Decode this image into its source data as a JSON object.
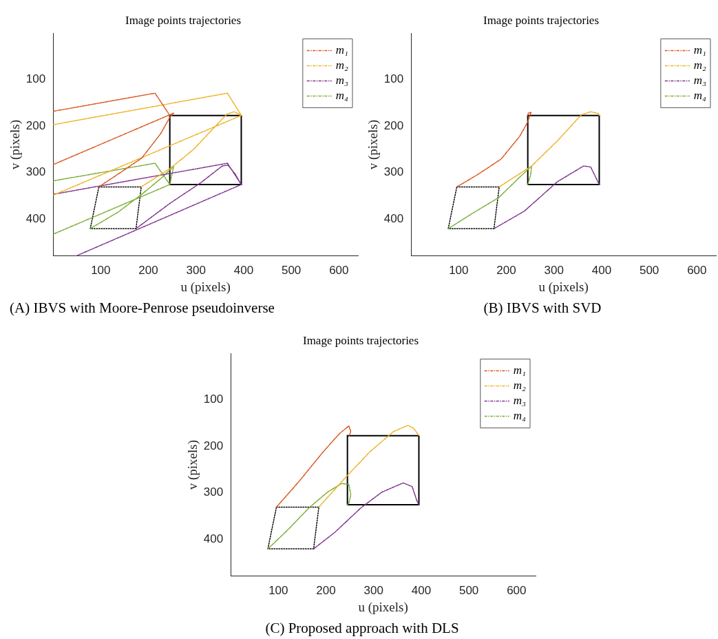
{
  "chart_data": [
    {
      "type": "line",
      "title": "Image points trajectories",
      "xlabel": "u (pixels)",
      "ylabel": "v (pixels)",
      "annotations": [
        "(A) IBVS with Moore-Penrose pseudoinverse"
      ],
      "xlim": [
        0,
        640
      ],
      "ylim": [
        480,
        0
      ],
      "xticks": [
        100,
        200,
        300,
        400,
        500,
        600
      ],
      "yticks": [
        100,
        200,
        300,
        400
      ],
      "grid": false,
      "legend": "top right",
      "marker": "none",
      "series": [
        {
          "name": "m₁",
          "color": "#d95319",
          "line_style": "dashed",
          "x": [
            96,
            137,
            186,
            226,
            245,
            253,
            0,
            null,
            0,
            214,
            245
          ],
          "values": [
            331,
            303,
            269,
            216,
            181,
            172,
            283,
            null,
            168,
            129,
            177
          ]
        },
        {
          "name": "m₂",
          "color": "#edb120",
          "line_style": "dashed",
          "x": [
            185,
            246,
            295,
            340,
            365,
            380,
            395,
            0,
            null,
            0,
            366,
            395
          ],
          "values": [
            331,
            291,
            250,
            201,
            174,
            169,
            177,
            349,
            null,
            197,
            129,
            177
          ]
        },
        {
          "name": "m₃",
          "color": "#7e2f8e",
          "line_style": "dashed",
          "x": [
            174,
            246,
            310,
            355,
            367,
            382,
            395,
            48,
            null,
            0,
            366,
            395
          ],
          "values": [
            421,
            366,
            322,
            286,
            284,
            303,
            326,
            480,
            null,
            347,
            280,
            326
          ]
        },
        {
          "name": "m₄",
          "color": "#77ac30",
          "line_style": "dashed",
          "x": [
            78,
            137,
            186,
            226,
            253,
            245,
            0,
            null,
            0,
            214,
            245
          ],
          "values": [
            421,
            385,
            347,
            313,
            287,
            326,
            433,
            null,
            318,
            280,
            326
          ]
        },
        {
          "color": "#000000",
          "line_style": "solid",
          "x": [
            245,
            395,
            395
          ],
          "values": [
            177,
            177,
            326
          ]
        },
        {
          "color": "#000000",
          "line_style": "solid",
          "x": [
            395,
            245,
            245
          ],
          "values": [
            326,
            326,
            177
          ]
        },
        {
          "color": "#000000",
          "line_style": "dotted",
          "x": [
            96,
            185,
            174
          ],
          "values": [
            331,
            331,
            421
          ]
        },
        {
          "color": "#000000",
          "line_style": "dotted",
          "x": [
            174,
            78,
            96
          ],
          "values": [
            421,
            421,
            331
          ]
        }
      ]
    },
    {
      "type": "line",
      "title": "Image points trajectories",
      "xlabel": "u (pixels)",
      "ylabel": "v (pixels)",
      "annotations": [
        "(B) IBVS with SVD"
      ],
      "xlim": [
        0,
        640
      ],
      "ylim": [
        480,
        0
      ],
      "xticks": [
        100,
        200,
        300,
        400,
        500,
        600
      ],
      "yticks": [
        100,
        200,
        300,
        400
      ],
      "grid": false,
      "legend": "top right",
      "marker": "none",
      "series": [
        {
          "name": "m₁",
          "color": "#d95319",
          "line_style": "dashed",
          "x": [
            96,
            139,
            189,
            228,
            244,
            252,
            246,
            245
          ],
          "values": [
            331,
            305,
            271,
            222,
            193,
            170,
            172,
            177
          ]
        },
        {
          "name": "m₂",
          "color": "#edb120",
          "line_style": "dashed",
          "x": [
            185,
            253,
            307,
            357,
            377,
            394,
            395
          ],
          "values": [
            331,
            286,
            232,
            176,
            169,
            173,
            177
          ]
        },
        {
          "name": "m₃",
          "color": "#7e2f8e",
          "line_style": "dashed",
          "x": [
            174,
            238,
            307,
            362,
            377,
            395
          ],
          "values": [
            421,
            383,
            320,
            286,
            288,
            326
          ]
        },
        {
          "name": "m₄",
          "color": "#77ac30",
          "line_style": "dashed",
          "x": [
            78,
            129,
            184,
            228,
            253,
            251,
            245
          ],
          "values": [
            421,
            388,
            354,
            310,
            286,
            305,
            326
          ]
        },
        {
          "color": "#000000",
          "line_style": "solid",
          "x": [
            245,
            395,
            395
          ],
          "values": [
            177,
            177,
            326
          ]
        },
        {
          "color": "#000000",
          "line_style": "solid",
          "x": [
            395,
            245,
            245
          ],
          "values": [
            326,
            326,
            177
          ]
        },
        {
          "color": "#000000",
          "line_style": "dotted",
          "x": [
            96,
            185,
            174
          ],
          "values": [
            331,
            331,
            421
          ]
        },
        {
          "color": "#000000",
          "line_style": "dotted",
          "x": [
            174,
            78,
            96
          ],
          "values": [
            421,
            421,
            331
          ]
        }
      ]
    },
    {
      "type": "line",
      "title": "Image points trajectories",
      "xlabel": "u (pixels)",
      "ylabel": "v (pixels)",
      "annotations": [
        "(C) Proposed approach with DLS"
      ],
      "xlim": [
        0,
        640
      ],
      "ylim": [
        480,
        0
      ],
      "xticks": [
        100,
        200,
        300,
        400,
        500,
        600
      ],
      "yticks": [
        100,
        200,
        300,
        400
      ],
      "grid": false,
      "legend": "top right",
      "marker": "none",
      "series": [
        {
          "name": "m₁",
          "color": "#d95319",
          "line_style": "dashed",
          "x": [
            96,
            144,
            194,
            228,
            248,
            252,
            249
          ],
          "values": [
            331,
            275,
            212,
            173,
            156,
            168,
            177
          ]
        },
        {
          "name": "m₂",
          "color": "#edb120",
          "line_style": "dashed",
          "x": [
            185,
            243,
            292,
            342,
            372,
            384,
            395
          ],
          "values": [
            331,
            265,
            212,
            168,
            155,
            161,
            177
          ]
        },
        {
          "name": "m₃",
          "color": "#7e2f8e",
          "line_style": "dashed",
          "x": [
            174,
            218,
            273,
            317,
            362,
            381,
            391,
            395
          ],
          "values": [
            421,
            386,
            333,
            299,
            279,
            287,
            318,
            326
          ]
        },
        {
          "name": "m₄",
          "color": "#77ac30",
          "line_style": "dashed",
          "x": [
            78,
            119,
            164,
            203,
            233,
            248,
            252,
            248,
            245
          ],
          "values": [
            421,
            381,
            333,
            299,
            280,
            282,
            304,
            323,
            326
          ]
        },
        {
          "color": "#000000",
          "line_style": "solid",
          "x": [
            245,
            395,
            395
          ],
          "values": [
            177,
            177,
            326
          ]
        },
        {
          "color": "#000000",
          "line_style": "solid",
          "x": [
            395,
            245,
            245
          ],
          "values": [
            326,
            326,
            177
          ]
        },
        {
          "color": "#000000",
          "line_style": "dotted",
          "x": [
            96,
            185,
            174
          ],
          "values": [
            331,
            331,
            421
          ]
        },
        {
          "color": "#000000",
          "line_style": "dotted",
          "x": [
            174,
            78,
            96
          ],
          "values": [
            421,
            421,
            331
          ]
        }
      ]
    }
  ]
}
